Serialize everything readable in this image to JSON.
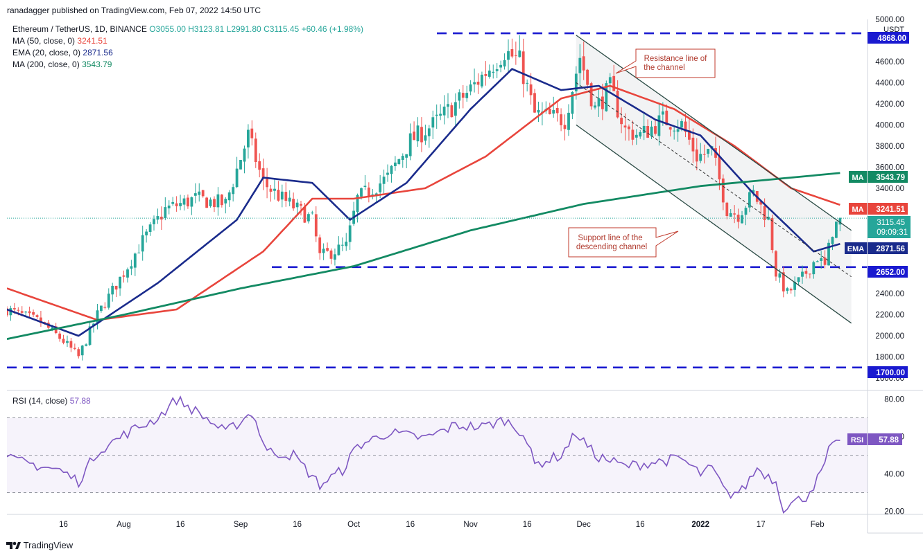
{
  "header": {
    "publisher": "ranadagger published on TradingView.com, Feb 07, 2022 14:50 UTC"
  },
  "legend": {
    "symbol": "Ethereum / TetherUS, 1D, BINANCE",
    "open": "O3055.00",
    "high": "H3123.81",
    "low": "L2991.80",
    "close": "C3115.45",
    "change": "+60.46 (+1.98%)",
    "ma50_label": "MA (50, close, 0)",
    "ma50_value": "3241.51",
    "ema20_label": "EMA (20, close, 0)",
    "ema20_value": "2871.56",
    "ma200_label": "MA (200, close, 0)",
    "ma200_value": "3543.79"
  },
  "rsi_legend": {
    "label": "RSI (14, close)",
    "value": "57.88"
  },
  "footer": {
    "brand": "TradingView"
  },
  "annotations": {
    "resistance": [
      "Resistance line of",
      "the channel"
    ],
    "support": [
      "Support line of the",
      "descending channel"
    ]
  },
  "price_tags": {
    "usdt": "USDT",
    "top_level": "4868.00",
    "ma200": {
      "tag": "MA",
      "value": "3543.79"
    },
    "ma50": {
      "tag": "MA",
      "value": "3241.51"
    },
    "last": {
      "value": "3115.45",
      "countdown": "09:09:31"
    },
    "ema": {
      "tag": "EMA",
      "value": "2871.56"
    },
    "mid_level": "2652.00",
    "bottom_level": "1700.00",
    "rsi": {
      "tag": "RSI",
      "value": "57.88"
    }
  },
  "colors": {
    "ma50": "#e8453c",
    "ema20": "#1a2b8c",
    "ma200": "#138a63",
    "rsi": "#7e57c2",
    "up": "#26a69a",
    "down": "#ef5350",
    "level": "#1a1ad0",
    "channel": "#2a4a44"
  },
  "chart_data": [
    {
      "type": "candlestick",
      "title": "Ethereum / TetherUS, 1D, BINANCE",
      "y_axis_ticks": [
        1600,
        1800,
        2000,
        2200,
        2400,
        2600,
        2800,
        3000,
        3200,
        3400,
        3600,
        3800,
        4000,
        4200,
        4400,
        4600,
        4800,
        5000
      ],
      "y_axis_unit": "USDT",
      "x_axis_ticks": [
        "16",
        "Aug",
        "16",
        "Sep",
        "16",
        "Oct",
        "16",
        "Nov",
        "16",
        "Dec",
        "16",
        "2022",
        "17",
        "Feb"
      ],
      "ylim": [
        1600,
        5000
      ],
      "close_path": [
        [
          "2021-07-01",
          2250
        ],
        [
          "2021-07-10",
          2130
        ],
        [
          "2021-07-16",
          1950
        ],
        [
          "2021-07-20",
          1800
        ],
        [
          "2021-07-25",
          2200
        ],
        [
          "2021-08-01",
          2600
        ],
        [
          "2021-08-06",
          2900
        ],
        [
          "2021-08-12",
          3200
        ],
        [
          "2021-08-20",
          3300
        ],
        [
          "2021-08-28",
          3250
        ],
        [
          "2021-09-03",
          3900
        ],
        [
          "2021-09-07",
          3450
        ],
        [
          "2021-09-12",
          3300
        ],
        [
          "2021-09-20",
          3100
        ],
        [
          "2021-09-22",
          2750
        ],
        [
          "2021-09-29",
          2850
        ],
        [
          "2021-10-02",
          3300
        ],
        [
          "2021-10-10",
          3500
        ],
        [
          "2021-10-16",
          3850
        ],
        [
          "2021-10-22",
          4000
        ],
        [
          "2021-10-31",
          4300
        ],
        [
          "2021-11-05",
          4500
        ],
        [
          "2021-11-10",
          4700
        ],
        [
          "2021-11-14",
          4600
        ],
        [
          "2021-11-18",
          4100
        ],
        [
          "2021-11-26",
          4050
        ],
        [
          "2021-11-30",
          4650
        ],
        [
          "2021-12-04",
          4150
        ],
        [
          "2021-12-08",
          4350
        ],
        [
          "2021-12-12",
          3950
        ],
        [
          "2021-12-16",
          3900
        ],
        [
          "2021-12-22",
          4050
        ],
        [
          "2021-12-27",
          4000
        ],
        [
          "2021-12-31",
          3700
        ],
        [
          "2022-01-04",
          3750
        ],
        [
          "2022-01-08",
          3200
        ],
        [
          "2022-01-11",
          3150
        ],
        [
          "2022-01-15",
          3350
        ],
        [
          "2022-01-19",
          3100
        ],
        [
          "2022-01-21",
          2600
        ],
        [
          "2022-01-24",
          2400
        ],
        [
          "2022-01-28",
          2550
        ],
        [
          "2022-02-01",
          2750
        ],
        [
          "2022-02-03",
          2650
        ],
        [
          "2022-02-05",
          3000
        ],
        [
          "2022-02-07",
          3115
        ]
      ],
      "series": [
        {
          "name": "MA (50, close, 0)",
          "points": [
            [
              "2021-07-01",
              2450
            ],
            [
              "2021-07-25",
              2150
            ],
            [
              "2021-08-15",
              2250
            ],
            [
              "2021-09-07",
              2800
            ],
            [
              "2021-09-20",
              3300
            ],
            [
              "2021-10-01",
              3300
            ],
            [
              "2021-10-20",
              3400
            ],
            [
              "2021-11-05",
              3700
            ],
            [
              "2021-11-25",
              4250
            ],
            [
              "2021-12-08",
              4370
            ],
            [
              "2021-12-25",
              4150
            ],
            [
              "2022-01-10",
              3800
            ],
            [
              "2022-01-25",
              3400
            ],
            [
              "2022-02-07",
              3241.51
            ]
          ]
        },
        {
          "name": "EMA (20, close, 0)",
          "points": [
            [
              "2021-07-01",
              2250
            ],
            [
              "2021-07-20",
              2000
            ],
            [
              "2021-08-10",
              2500
            ],
            [
              "2021-08-31",
              3100
            ],
            [
              "2021-09-07",
              3500
            ],
            [
              "2021-09-20",
              3450
            ],
            [
              "2021-09-30",
              3100
            ],
            [
              "2021-10-15",
              3450
            ],
            [
              "2021-11-01",
              4150
            ],
            [
              "2021-11-12",
              4530
            ],
            [
              "2021-11-25",
              4330
            ],
            [
              "2021-12-05",
              4370
            ],
            [
              "2021-12-20",
              4050
            ],
            [
              "2022-01-01",
              3900
            ],
            [
              "2022-01-15",
              3350
            ],
            [
              "2022-01-31",
              2800
            ],
            [
              "2022-02-07",
              2871.56
            ]
          ]
        },
        {
          "name": "MA (200, close, 0)",
          "points": [
            [
              "2021-07-01",
              1970
            ],
            [
              "2021-08-01",
              2200
            ],
            [
              "2021-09-01",
              2450
            ],
            [
              "2021-10-01",
              2660
            ],
            [
              "2021-11-01",
              3000
            ],
            [
              "2021-12-01",
              3250
            ],
            [
              "2022-01-01",
              3420
            ],
            [
              "2022-02-07",
              3543.79
            ]
          ]
        }
      ],
      "levels": [
        4868.0,
        2652.0,
        1700.0
      ],
      "channel": {
        "resistance": [
          [
            "2021-11-29",
            4850
          ],
          [
            "2022-02-10",
            3000
          ]
        ],
        "support": [
          [
            "2021-11-29",
            4000
          ],
          [
            "2022-02-10",
            2120
          ]
        ],
        "midline": [
          [
            "2021-11-29",
            4400
          ],
          [
            "2022-02-10",
            2560
          ]
        ]
      }
    },
    {
      "type": "line",
      "title": "RSI (14, close)",
      "y_axis_ticks": [
        20,
        40,
        60,
        80
      ],
      "ylim": [
        17,
        84
      ],
      "bands": [
        30,
        50,
        70
      ],
      "series": [
        {
          "name": "RSI (14, close)",
          "points": [
            [
              "2021-07-01",
              48
            ],
            [
              "2021-07-15",
              42
            ],
            [
              "2021-07-20",
              36
            ],
            [
              "2021-07-25",
              52
            ],
            [
              "2021-08-02",
              62
            ],
            [
              "2021-08-10",
              70
            ],
            [
              "2021-08-15",
              80
            ],
            [
              "2021-08-22",
              71
            ],
            [
              "2021-08-28",
              62
            ],
            [
              "2021-09-04",
              73
            ],
            [
              "2021-09-08",
              52
            ],
            [
              "2021-09-15",
              50
            ],
            [
              "2021-09-22",
              34
            ],
            [
              "2021-09-28",
              42
            ],
            [
              "2021-10-02",
              55
            ],
            [
              "2021-10-10",
              62
            ],
            [
              "2021-10-20",
              59
            ],
            [
              "2021-10-28",
              66
            ],
            [
              "2021-11-04",
              65
            ],
            [
              "2021-11-10",
              69
            ],
            [
              "2021-11-15",
              62
            ],
            [
              "2021-11-18",
              45
            ],
            [
              "2021-11-25",
              50
            ],
            [
              "2021-11-29",
              62
            ],
            [
              "2021-12-04",
              50
            ],
            [
              "2021-12-12",
              44
            ],
            [
              "2021-12-22",
              47
            ],
            [
              "2021-12-27",
              48
            ],
            [
              "2022-01-01",
              40
            ],
            [
              "2022-01-04",
              43
            ],
            [
              "2022-01-08",
              29
            ],
            [
              "2022-01-12",
              31
            ],
            [
              "2022-01-16",
              43
            ],
            [
              "2022-01-21",
              36
            ],
            [
              "2022-01-23",
              22
            ],
            [
              "2022-01-29",
              28
            ],
            [
              "2022-02-02",
              40
            ],
            [
              "2022-02-04",
              52
            ],
            [
              "2022-02-07",
              57.88
            ]
          ]
        }
      ]
    }
  ]
}
